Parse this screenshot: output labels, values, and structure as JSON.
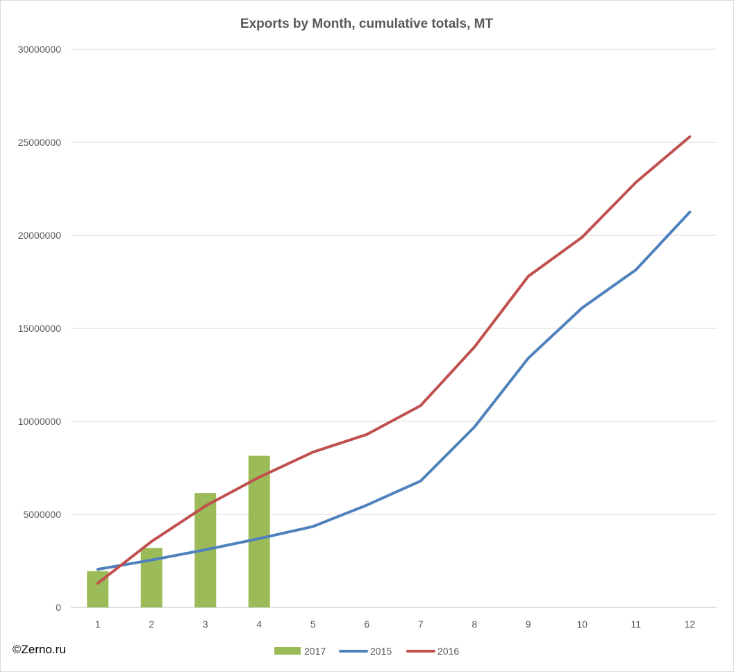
{
  "chart_data": {
    "type": "bar",
    "title": "Exports by Month, cumulative totals, MT",
    "categories": [
      "1",
      "2",
      "3",
      "4",
      "5",
      "6",
      "7",
      "8",
      "9",
      "10",
      "11",
      "12"
    ],
    "ylim": [
      0,
      30000000
    ],
    "yticks": [
      0,
      5000000,
      10000000,
      15000000,
      20000000,
      25000000,
      30000000
    ],
    "ytick_labels": [
      "0",
      "5000000",
      "10000000",
      "15000000",
      "20000000",
      "25000000",
      "30000000"
    ],
    "grid": true,
    "legend_position": "bottom",
    "series": [
      {
        "name": "2017",
        "kind": "bar",
        "color": "#9bbb59",
        "values": [
          1950000,
          3200000,
          6150000,
          8150000,
          null,
          null,
          null,
          null,
          null,
          null,
          null,
          null
        ]
      },
      {
        "name": "2015",
        "kind": "line",
        "color": "#4f81bd",
        "values": [
          2050000,
          2550000,
          3100000,
          3700000,
          4350000,
          5500000,
          6800000,
          9700000,
          13400000,
          16100000,
          18150000,
          21250000
        ]
      },
      {
        "name": "2016",
        "kind": "line",
        "color": "#c0504d",
        "values": [
          1300000,
          3550000,
          5450000,
          7000000,
          8350000,
          9300000,
          10850000,
          14000000,
          17800000,
          19900000,
          22850000,
          25300000
        ]
      }
    ]
  },
  "credit": "©Zerno.ru"
}
